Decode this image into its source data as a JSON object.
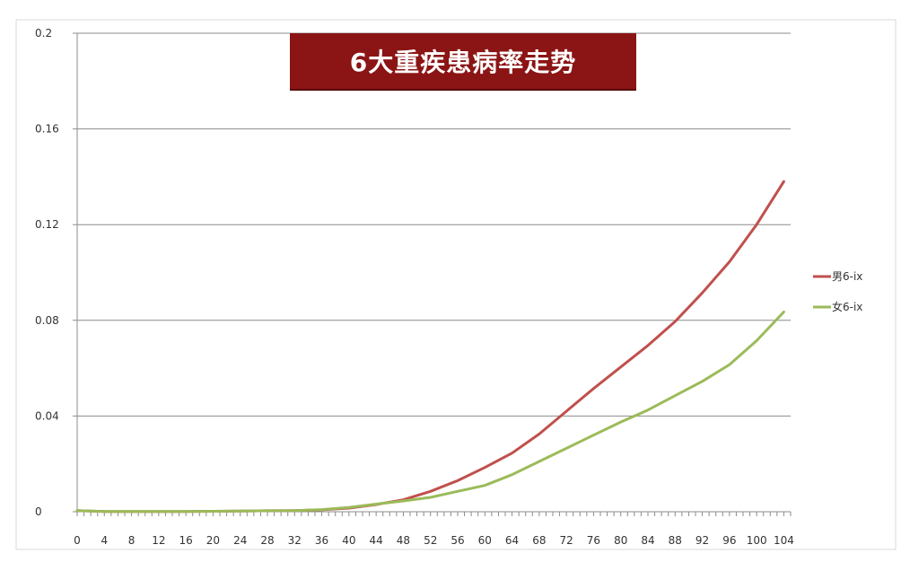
{
  "chart_data": {
    "type": "line",
    "title": "6大重疾患病率走势",
    "xlabel": "",
    "ylabel": "",
    "x": [
      0,
      4,
      8,
      12,
      16,
      20,
      24,
      28,
      32,
      36,
      40,
      44,
      48,
      52,
      56,
      60,
      64,
      68,
      72,
      76,
      80,
      84,
      88,
      92,
      96,
      100,
      104
    ],
    "x_tick_labels": [
      "0",
      "4",
      "8",
      "12",
      "16",
      "20",
      "24",
      "28",
      "32",
      "36",
      "40",
      "44",
      "48",
      "52",
      "56",
      "60",
      "64",
      "68",
      "72",
      "76",
      "80",
      "84",
      "88",
      "92",
      "96",
      "100",
      "104"
    ],
    "xlim": [
      0,
      105
    ],
    "ylim": [
      0,
      0.2
    ],
    "y_ticks": [
      0,
      0.04,
      0.08,
      0.12,
      0.16,
      0.2
    ],
    "y_tick_labels": [
      "0",
      "0.04",
      "0.08",
      "0.12",
      "0.16",
      "0.2"
    ],
    "grid": "horizontal",
    "legend_position": "right",
    "series": [
      {
        "name": "男6-ix",
        "color": "#c0504d",
        "values": [
          0.0005,
          0.0001,
          0.0001,
          0.0001,
          0.0001,
          0.0002,
          0.0003,
          0.0004,
          0.0005,
          0.0008,
          0.0015,
          0.003,
          0.005,
          0.0085,
          0.013,
          0.0185,
          0.0245,
          0.0325,
          0.042,
          0.0515,
          0.0605,
          0.0695,
          0.0795,
          0.0915,
          0.1045,
          0.12,
          0.138
        ]
      },
      {
        "name": "女6-ix",
        "color": "#9bbb59",
        "values": [
          0.0005,
          0.0001,
          0.0001,
          0.0001,
          0.0001,
          0.0002,
          0.0003,
          0.0004,
          0.0005,
          0.0009,
          0.0018,
          0.0032,
          0.0045,
          0.006,
          0.0085,
          0.011,
          0.0155,
          0.021,
          0.0265,
          0.032,
          0.0375,
          0.0425,
          0.0485,
          0.0545,
          0.0615,
          0.0715,
          0.0835
        ]
      }
    ]
  }
}
